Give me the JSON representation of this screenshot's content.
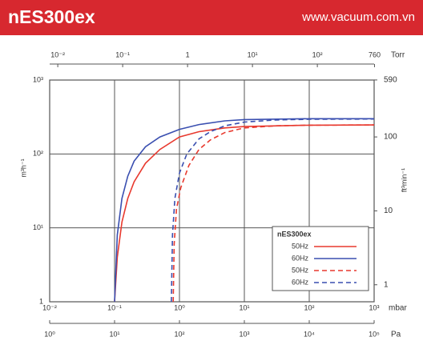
{
  "header": {
    "title": "nES300ex",
    "url": "www.vacuum.com.vn"
  },
  "chart_data": {
    "type": "line",
    "log_x": true,
    "log_y": true,
    "grid": true,
    "x_label": "mbar",
    "xlim": [
      0.01,
      1000
    ],
    "xticks": [
      {
        "value": 0.01,
        "label": "10⁻²"
      },
      {
        "value": 0.1,
        "label": "10⁻¹"
      },
      {
        "value": 1,
        "label": "10⁰"
      },
      {
        "value": 10,
        "label": "10¹"
      },
      {
        "value": 100,
        "label": "10²"
      },
      {
        "value": 1000,
        "label": "10³"
      }
    ],
    "y_label": "m³h⁻¹",
    "ylim": [
      1,
      1000
    ],
    "yticks": [
      1,
      {
        "value": 10,
        "label": "10¹"
      },
      {
        "value": 100,
        "label": "10²"
      },
      {
        "value": 1000,
        "label": "10³"
      }
    ],
    "y2_label": "ft³min⁻¹",
    "y2lim": [
      0.5886,
      588.6
    ],
    "y2ticks": [
      1,
      10,
      100,
      590
    ],
    "top_axis": {
      "label": "Torr",
      "lim": [
        0.0075,
        750
      ],
      "ticks": [
        {
          "value": 0.01,
          "label": "10⁻²"
        },
        {
          "value": 0.1,
          "label": "10⁻¹"
        },
        1,
        {
          "value": 10,
          "label": "10¹"
        },
        {
          "value": 100,
          "label": "10²"
        },
        760
      ]
    },
    "bottom_axis": {
      "label": "Pa",
      "lim": [
        1,
        100000
      ],
      "ticks": [
        {
          "value": 1,
          "label": "10⁰"
        },
        {
          "value": 10,
          "label": "10¹"
        },
        {
          "value": 100,
          "label": "10²"
        },
        {
          "value": 1000,
          "label": "10³"
        },
        {
          "value": 10000,
          "label": "10⁴"
        },
        {
          "value": 100000,
          "label": "10⁵"
        }
      ]
    },
    "legend": {
      "title": "nES300ex",
      "position": "lower right"
    },
    "series": [
      {
        "name": "50Hz",
        "color": "#e8392e",
        "dashed": false,
        "x": [
          0.1,
          0.11,
          0.13,
          0.16,
          0.2,
          0.3,
          0.5,
          1,
          2,
          5,
          10,
          100,
          1000
        ],
        "values": [
          1,
          4,
          12,
          25,
          42,
          75,
          115,
          170,
          200,
          225,
          235,
          245,
          247
        ]
      },
      {
        "name": "60Hz",
        "color": "#3a4fb0",
        "dashed": false,
        "x": [
          0.1,
          0.11,
          0.13,
          0.16,
          0.2,
          0.3,
          0.5,
          1,
          2,
          5,
          10,
          100,
          1000
        ],
        "values": [
          1,
          8,
          25,
          50,
          80,
          125,
          170,
          215,
          250,
          280,
          292,
          300,
          300
        ]
      },
      {
        "name": "50Hz",
        "color": "#e8392e",
        "dashed": true,
        "x": [
          0.8,
          0.83,
          0.9,
          1.05,
          1.4,
          2,
          3,
          5,
          10,
          30,
          100,
          1000
        ],
        "values": [
          1,
          6,
          18,
          35,
          70,
          115,
          155,
          195,
          225,
          240,
          245,
          247
        ]
      },
      {
        "name": "60Hz",
        "color": "#3a4fb0",
        "dashed": true,
        "x": [
          0.75,
          0.78,
          0.85,
          1,
          1.3,
          2,
          3,
          5,
          10,
          30,
          100,
          1000
        ],
        "values": [
          1,
          8,
          25,
          55,
          100,
          160,
          200,
          240,
          270,
          288,
          295,
          297
        ]
      }
    ]
  }
}
